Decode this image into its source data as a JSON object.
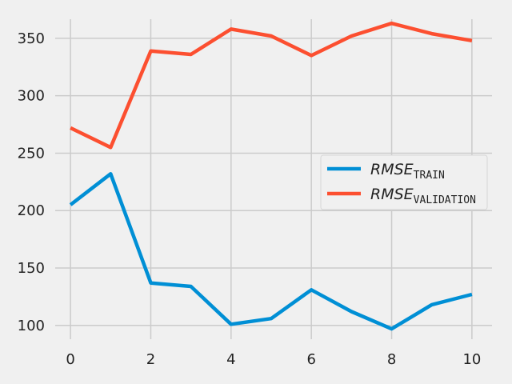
{
  "chart_data": {
    "type": "line",
    "x": [
      0,
      1,
      2,
      3,
      4,
      5,
      6,
      7,
      8,
      9,
      10
    ],
    "xlim": [
      -0.5,
      10.5
    ],
    "ylim": [
      88,
      375
    ],
    "xticks": [
      0,
      2,
      4,
      6,
      8,
      10
    ],
    "yticks": [
      100,
      150,
      200,
      250,
      300,
      350
    ],
    "grid": true,
    "legend_position": "center-right",
    "series": [
      {
        "name": "RMSE_TRAIN",
        "label_main": "RMSE",
        "label_sub": "TRAIN",
        "color": "#008fd5",
        "values": [
          205,
          232,
          137,
          134,
          101,
          106,
          131,
          112,
          97,
          118,
          127
        ]
      },
      {
        "name": "RMSE_VALIDATION",
        "label_main": "RMSE",
        "label_sub": "VALIDATION",
        "color": "#fc4f30",
        "values": [
          272,
          255,
          339,
          336,
          358,
          352,
          335,
          352,
          363,
          354,
          348
        ]
      }
    ]
  }
}
